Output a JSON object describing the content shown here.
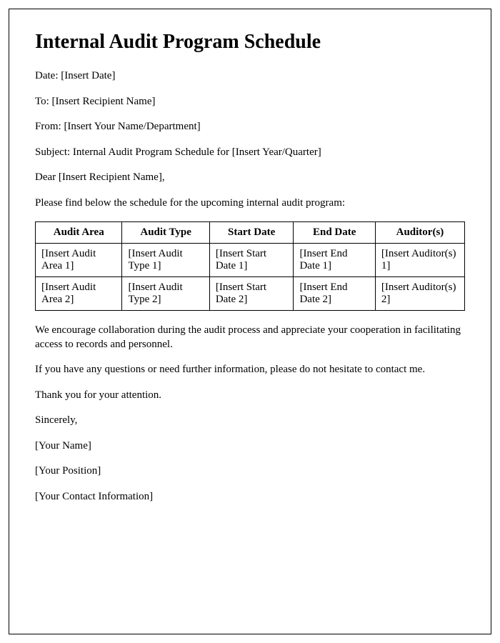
{
  "title": "Internal Audit Program Schedule",
  "meta": {
    "date_label": "Date: ",
    "date_value": "[Insert Date]",
    "to_label": "To: ",
    "to_value": "[Insert Recipient Name]",
    "from_label": "From: ",
    "from_value": "[Insert Your Name/Department]",
    "subject_label": "Subject: ",
    "subject_value": "Internal Audit Program Schedule for [Insert Year/Quarter]"
  },
  "salutation": "Dear [Insert Recipient Name],",
  "intro": "Please find below the schedule for the upcoming internal audit program:",
  "table": {
    "columns": [
      "Audit Area",
      "Audit Type",
      "Start Date",
      "End Date",
      "Auditor(s)"
    ],
    "rows": [
      [
        "[Insert Audit Area 1]",
        "[Insert Audit Type 1]",
        "[Insert Start Date 1]",
        "[Insert End Date 1]",
        "[Insert Auditor(s) 1]"
      ],
      [
        "[Insert Audit Area 2]",
        "[Insert Audit Type 2]",
        "[Insert Start Date 2]",
        "[Insert End Date 2]",
        "[Insert Auditor(s) 2]"
      ]
    ]
  },
  "body": {
    "p1": "We encourage collaboration during the audit process and appreciate your cooperation in facilitating access to records and personnel.",
    "p2": "If you have any questions or need further information, please do not hesitate to contact me.",
    "p3": "Thank you for your attention.",
    "closing": "Sincerely,",
    "name": "[Your Name]",
    "position": "[Your Position]",
    "contact": "[Your Contact Information]"
  }
}
